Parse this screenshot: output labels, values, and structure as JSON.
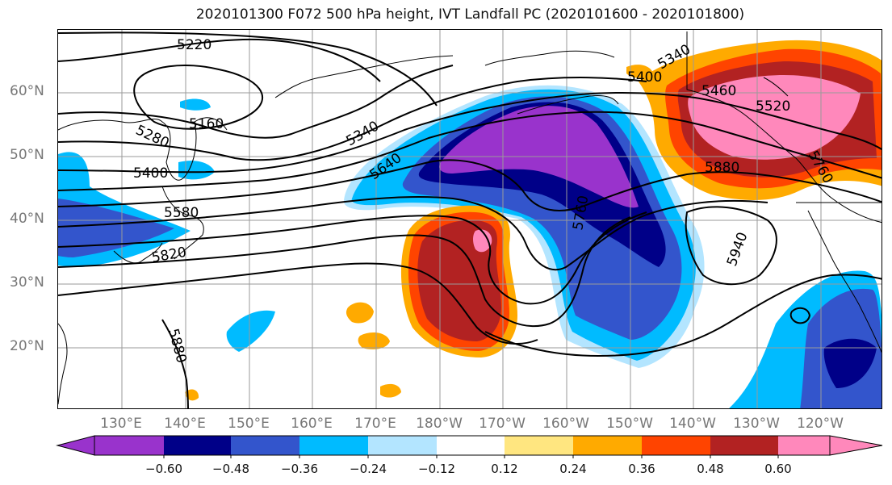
{
  "title": "2020101300 F072 500 hPa height, IVT Landfall PC (2020101600 - 2020101800)",
  "lat_labels": [
    "60°N",
    "50°N",
    "40°N",
    "30°N",
    "20°N"
  ],
  "lon_labels": [
    "130°E",
    "140°E",
    "150°E",
    "160°E",
    "170°E",
    "180°W",
    "170°W",
    "160°W",
    "150°W",
    "140°W",
    "130°W",
    "120°W"
  ],
  "contour_labels": [
    "5220",
    "5160",
    "5280",
    "5400",
    "5340",
    "5400",
    "5460",
    "5520",
    "5340",
    "5640",
    "5580",
    "5820",
    "5760",
    "5880",
    "5940",
    "5760",
    "5880"
  ],
  "colorbar": {
    "tick_labels": [
      "−0.60",
      "−0.48",
      "−0.36",
      "−0.24",
      "−0.12",
      "0.12",
      "0.24",
      "0.36",
      "0.48",
      "0.60"
    ],
    "colors": [
      "#9933cc",
      "#000088",
      "#3355cc",
      "#00bbff",
      "#b3e5ff",
      "#ffffff",
      "#ffe680",
      "#ffaa00",
      "#ff4400",
      "#b22222",
      "#ff88bb"
    ]
  }
}
